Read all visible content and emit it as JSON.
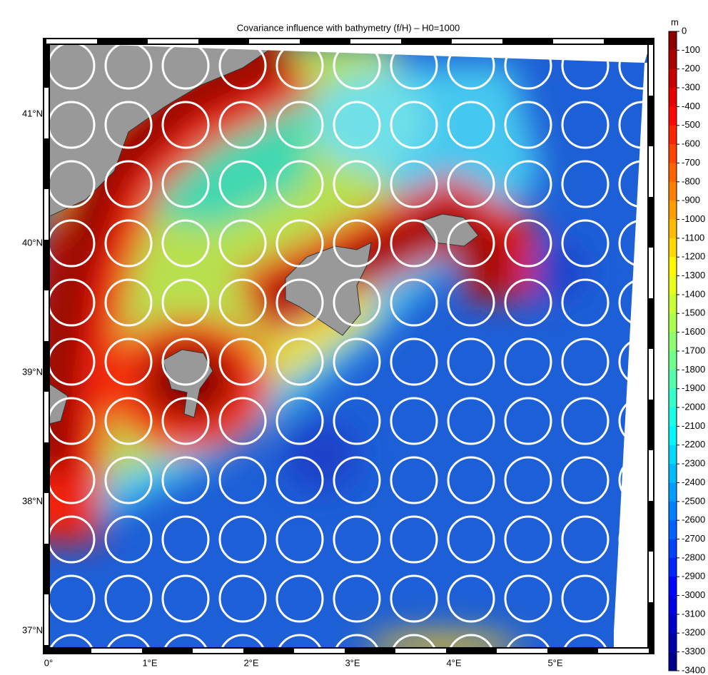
{
  "title": "Covariance influence with bathymetry (f/H) – H0=1000",
  "lat_labels": [
    "41°N",
    "40°N",
    "39°N",
    "38°N",
    "37°N"
  ],
  "lon_labels": [
    "0°",
    "1°E",
    "2°E",
    "3°E",
    "4°E",
    "5°E"
  ],
  "colorbar": {
    "unit": "m",
    "ticks": [
      0,
      -100,
      -200,
      -300,
      -400,
      -500,
      -600,
      -700,
      -800,
      -900,
      -1000,
      -1100,
      -1200,
      -1300,
      -1400,
      -1500,
      -1600,
      -1700,
      -1800,
      -1900,
      -2000,
      -2100,
      -2200,
      -2300,
      -2400,
      -2500,
      -2600,
      -2700,
      -2800,
      -2900,
      -3000,
      -3100,
      -3200,
      -3300,
      -3400
    ]
  }
}
